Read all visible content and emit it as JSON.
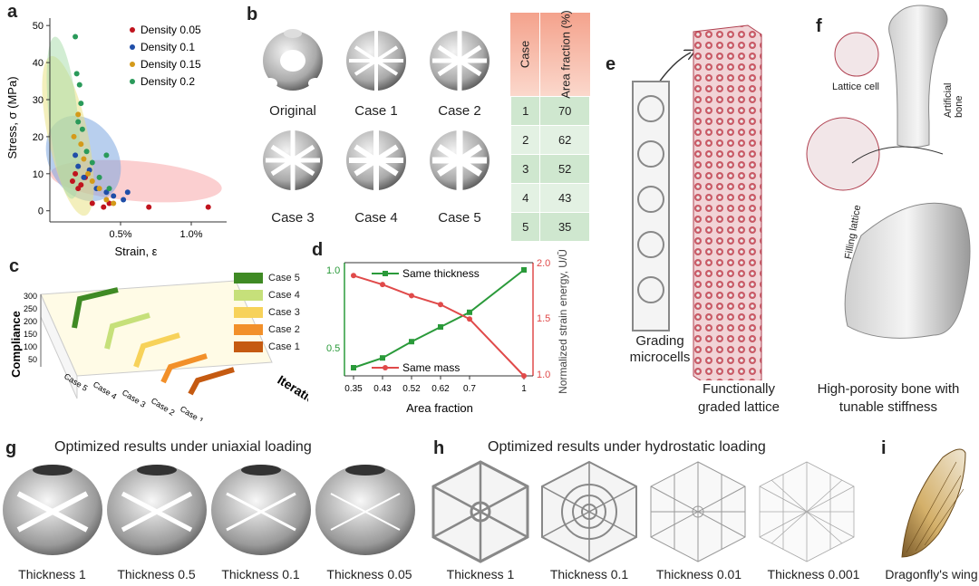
{
  "panels": {
    "a": "a",
    "b": "b",
    "c": "c",
    "d": "d",
    "e": "e",
    "f": "f",
    "g": "g",
    "h": "h",
    "i": "i"
  },
  "panel_a": {
    "xlabel": "Strain, ε",
    "ylabel": "Stress, σ (MPa)",
    "xticks": [
      "0.5%",
      "1.0%"
    ],
    "yticks": [
      "0",
      "10",
      "20",
      "30",
      "40",
      "50"
    ],
    "legend": [
      "Density 0.05",
      "Density 0.1",
      "Density 0.15",
      "Density 0.2"
    ],
    "colors": [
      "#c0141e",
      "#1f4ea8",
      "#d49a1a",
      "#2a9a5a"
    ]
  },
  "chart_data": [
    {
      "type": "scatter",
      "xlabel": "Strain, ε",
      "ylabel": "Stress, σ (MPa)",
      "xlim": [
        0,
        1.25
      ],
      "ylim": [
        -3,
        52
      ],
      "x_unit": "%",
      "series": [
        {
          "name": "Density 0.05",
          "points": [
            [
              0.16,
              8
            ],
            [
              0.18,
              10
            ],
            [
              0.2,
              6
            ],
            [
              0.22,
              7
            ],
            [
              0.25,
              9
            ],
            [
              0.3,
              2
            ],
            [
              0.38,
              1
            ],
            [
              0.42,
              2
            ],
            [
              0.7,
              1
            ],
            [
              1.12,
              1
            ]
          ]
        },
        {
          "name": "Density 0.1",
          "points": [
            [
              0.18,
              15
            ],
            [
              0.2,
              12
            ],
            [
              0.24,
              9
            ],
            [
              0.28,
              11
            ],
            [
              0.33,
              6
            ],
            [
              0.4,
              5
            ],
            [
              0.45,
              4
            ],
            [
              0.52,
              3
            ],
            [
              0.55,
              5
            ]
          ]
        },
        {
          "name": "Density 0.15",
          "points": [
            [
              0.17,
              20
            ],
            [
              0.2,
              26
            ],
            [
              0.22,
              18
            ],
            [
              0.24,
              14
            ],
            [
              0.27,
              10
            ],
            [
              0.3,
              8
            ],
            [
              0.35,
              6
            ],
            [
              0.4,
              3
            ],
            [
              0.45,
              2
            ]
          ]
        },
        {
          "name": "Density 0.2",
          "points": [
            [
              0.18,
              47
            ],
            [
              0.19,
              37
            ],
            [
              0.21,
              34
            ],
            [
              0.22,
              29
            ],
            [
              0.2,
              24
            ],
            [
              0.23,
              22
            ],
            [
              0.26,
              16
            ],
            [
              0.3,
              13
            ],
            [
              0.35,
              9
            ],
            [
              0.4,
              15
            ],
            [
              0.42,
              6
            ]
          ]
        }
      ]
    },
    {
      "type": "line",
      "xlabel": "Area fraction",
      "ylabel": "Normalized strain energy, U/Ū",
      "categories": [
        "0.35",
        "0.43",
        "0.52",
        "0.62",
        "0.7",
        "1"
      ],
      "series": [
        {
          "name": "Same thickness",
          "axis": "left",
          "values": [
            0.4,
            0.46,
            0.56,
            0.65,
            0.74,
            1.0
          ]
        },
        {
          "name": "Same mass",
          "axis": "right",
          "values": [
            1.9,
            1.82,
            1.72,
            1.64,
            1.51,
            1.0
          ]
        }
      ],
      "y_left_ticks": [
        "0.5",
        "1.0"
      ],
      "y_right_ticks": [
        "1.0",
        "1.5",
        "2.0"
      ]
    },
    {
      "type": "table",
      "columns": [
        "Case",
        "Area fraction (%)"
      ],
      "rows": [
        [
          "1",
          "70"
        ],
        [
          "2",
          "62"
        ],
        [
          "3",
          "52"
        ],
        [
          "4",
          "43"
        ],
        [
          "5",
          "35"
        ]
      ]
    }
  ],
  "panel_b": {
    "captions": [
      "Original",
      "Case 1",
      "Case 2",
      "Case 3",
      "Case 4",
      "Case 5"
    ],
    "table_header": [
      "Case",
      "Area fraction (%)"
    ]
  },
  "panel_c": {
    "ylabel": "Compliance",
    "xlabel": "Iteration",
    "yticks": [
      "300",
      "250",
      "200",
      "150",
      "100",
      "50"
    ],
    "case_axis": [
      "Case 5",
      "Case 4",
      "Case 3",
      "Case 2",
      "Case 1"
    ],
    "legend": [
      {
        "label": "Case 5",
        "color": "#3f8a24"
      },
      {
        "label": "Case 4",
        "color": "#c6e07a"
      },
      {
        "label": "Case 3",
        "color": "#f7d25a"
      },
      {
        "label": "Case 2",
        "color": "#f2902a"
      },
      {
        "label": "Case 1",
        "color": "#c55a11"
      }
    ]
  },
  "panel_d": {
    "xlabel": "Area fraction",
    "ylabel_right": "Normalized strain energy, U/Ū",
    "legend_thickness": "Same thickness",
    "legend_mass": "Same mass",
    "green": "#2a9a3a",
    "red": "#e04a4a"
  },
  "panel_e": {
    "caption_left": "Grading microcells",
    "caption_right": "Functionally graded lattice"
  },
  "panel_f": {
    "lattice_cell": "Lattice cell",
    "artificial_bone": "Artificial bone",
    "filling_lattice": "Filling lattice",
    "caption": "High-porosity bone with tunable stiffness"
  },
  "panel_g": {
    "title": "Optimized results under uniaxial loading",
    "captions": [
      "Thickness 1",
      "Thickness 0.5",
      "Thickness 0.1",
      "Thickness 0.05"
    ]
  },
  "panel_h": {
    "title": "Optimized results under hydrostatic loading",
    "captions": [
      "Thickness 1",
      "Thickness 0.1",
      "Thickness 0.01",
      "Thickness 0.001"
    ]
  },
  "panel_i": {
    "caption": "Dragonfly's wing"
  }
}
